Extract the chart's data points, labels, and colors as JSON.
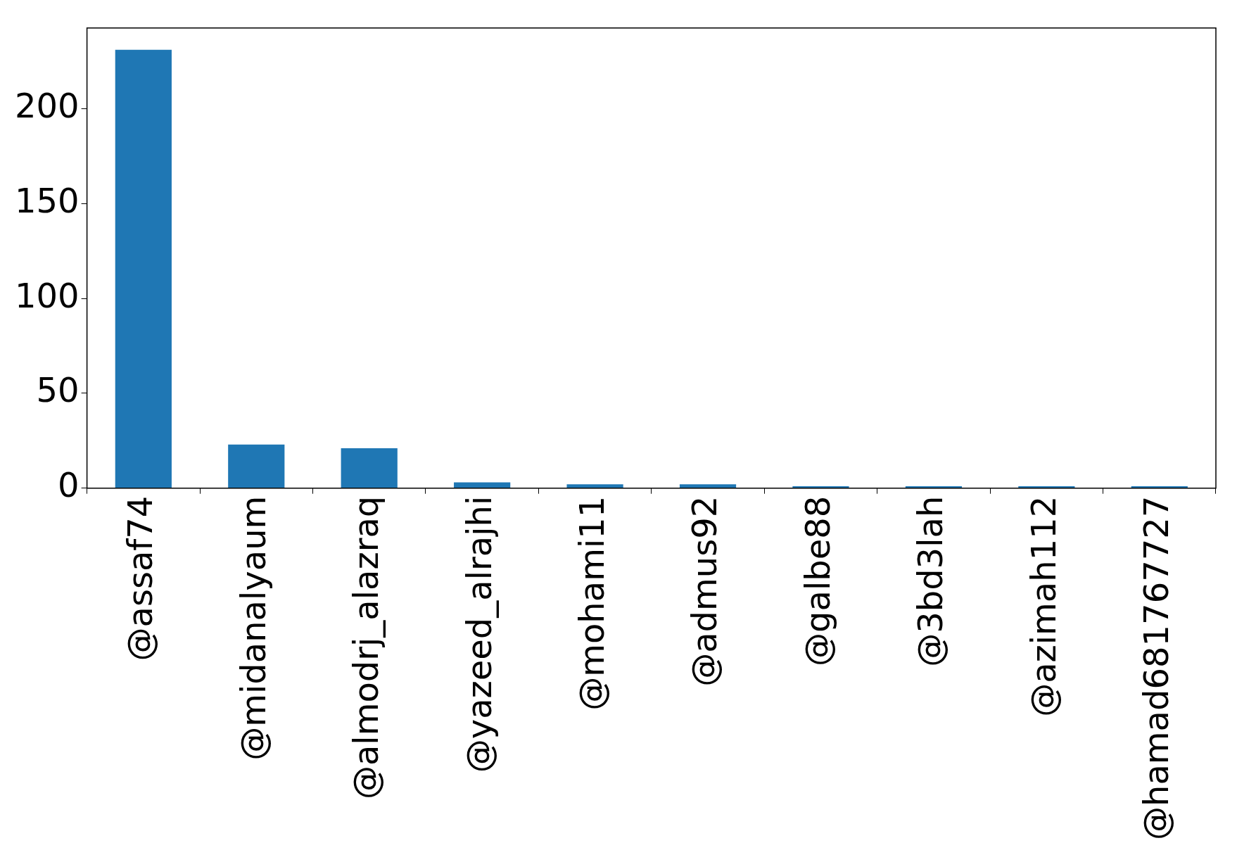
{
  "chart_data": {
    "type": "bar",
    "categories": [
      "@assaf74",
      "@midanalyaum",
      "@almodrj_alazraq",
      "@yazeed_alrajhi",
      "@mohami11",
      "@admus92",
      "@galbe88",
      "@3bd3lah",
      "@azimah112",
      "@hamad681767727"
    ],
    "values": [
      231,
      23,
      21,
      3,
      2,
      2,
      1,
      1,
      1,
      1
    ],
    "color": "#1f77b4",
    "ylim": [
      0,
      242.5
    ],
    "yticks": [
      0,
      50,
      100,
      150,
      200
    ],
    "grid": false,
    "legend": false
  }
}
